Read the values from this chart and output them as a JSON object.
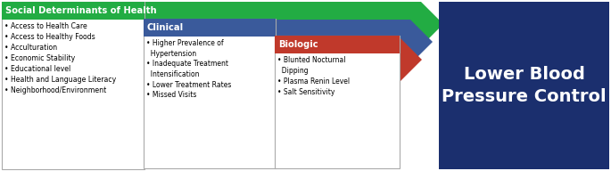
{
  "social_header": "Social Determinants of Health",
  "social_color": "#22AC43",
  "social_items": "• Access to Health Care\n• Access to Healthy Foods\n• Acculturation\n• Economic Stability\n• Educational level\n• Health and Language Literacy\n• Neighborhood/Environment",
  "clinical_header": "Clinical",
  "clinical_color": "#3A5A9B",
  "clinical_items": "• Higher Prevalence of\n  Hypertension\n• Inadequate Treatment\n  Intensification\n• Lower Treatment Rates\n• Missed Visits",
  "biologic_header": "Biologic",
  "biologic_color": "#C0392B",
  "biologic_items": "• Blunted Nocturnal\n  Dipping\n• Plasma Renin Level\n• Salt Sensitivity",
  "outcome_text": "Lower Blood\nPressure Control",
  "outcome_bg": "#1B2F6E",
  "outcome_text_color": "#FFFFFF",
  "bg_color": "#FFFFFF",
  "arrow_green": "#22AC43",
  "arrow_blue": "#3A5A9B",
  "arrow_red": "#C0392B",
  "fig_w": 6.85,
  "fig_h": 1.92,
  "dpi": 100
}
